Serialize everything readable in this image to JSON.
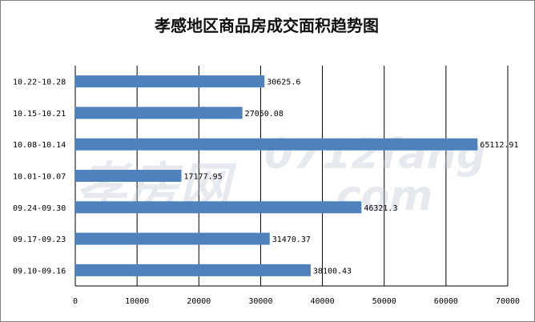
{
  "chart_data": {
    "type": "bar",
    "orientation": "horizontal",
    "title": "孝感地区商品房成交面积趋势图",
    "xlabel": "",
    "ylabel": "",
    "categories": [
      "09.10-09.16",
      "09.17-09.23",
      "09.24-09.30",
      "10.01-10.07",
      "10.08-10.14",
      "10.15-10.21",
      "10.22-10.28"
    ],
    "values": [
      38100.43,
      31470.37,
      46321.3,
      17177.95,
      65112.91,
      27050.08,
      30625.6
    ],
    "value_labels": [
      "38100.43",
      "31470.37",
      "46321.3",
      "17177.95",
      "65112.91",
      "27050.08",
      "30625.6"
    ],
    "xlim": [
      0,
      70000
    ],
    "ticks": [
      "0",
      "10000",
      "20000",
      "30000",
      "40000",
      "50000",
      "60000",
      "70000"
    ],
    "grid": "vertical",
    "legend": "none",
    "bar_color": "#4f81bd",
    "watermark": "孝房网 0712fang.com"
  }
}
